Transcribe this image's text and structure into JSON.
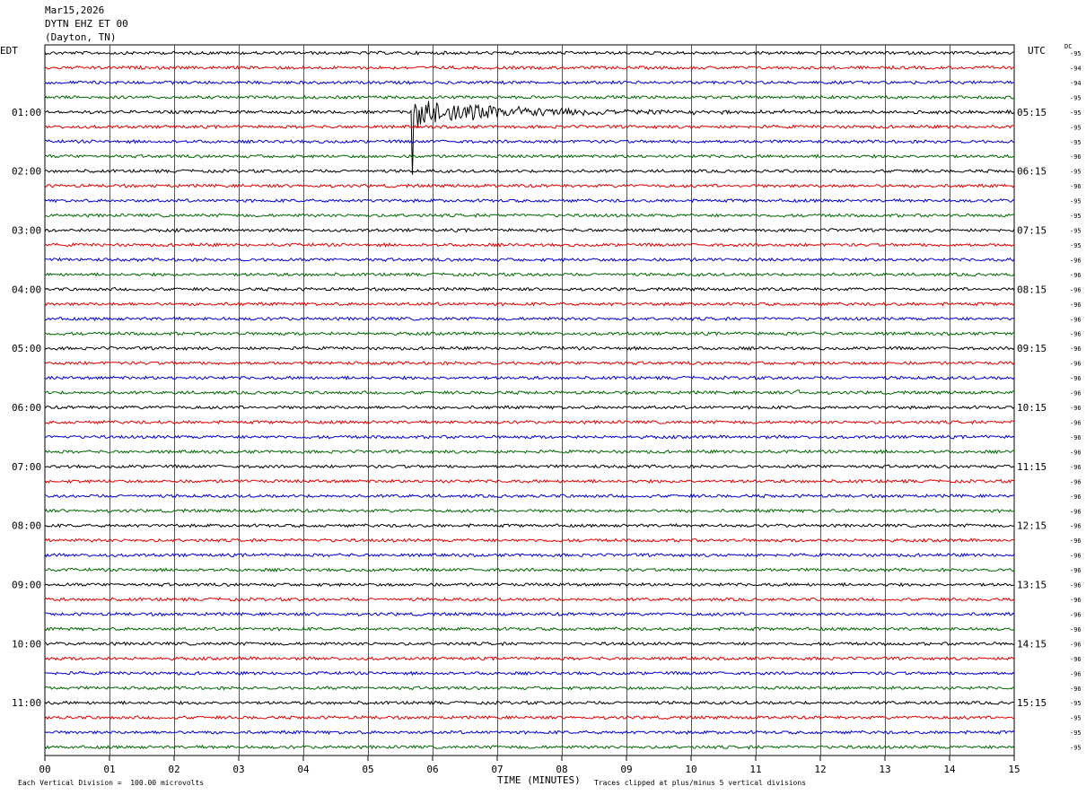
{
  "header": {
    "date": "Mar15,2026",
    "station": "DYTN EHZ ET 00",
    "location": "(Dayton, TN)"
  },
  "labels": {
    "left_tz": "EDT",
    "right_tz": "UTC",
    "dc_label": "DC",
    "x_title": "TIME (MINUTES)",
    "footer_left": "Each Vertical Division =  100.00 microvolts",
    "footer_right": "Traces clipped at plus/minus 5 vertical divisions"
  },
  "colors": {
    "trace_cycle": [
      "#000000",
      "#dd0000",
      "#0000cc",
      "#006600"
    ],
    "grid": "#000000",
    "background": "#ffffff"
  },
  "chart_data": {
    "type": "line",
    "title": "DYTN EHZ ET 00 (Dayton, TN) Mar15,2026",
    "xlabel": "TIME (MINUTES)",
    "x_ticks": [
      "00",
      "01",
      "02",
      "03",
      "04",
      "05",
      "06",
      "07",
      "08",
      "09",
      "10",
      "11",
      "12",
      "13",
      "14",
      "15"
    ],
    "xlim": [
      0,
      15
    ],
    "trace_minutes": 15,
    "row_count": 48,
    "left_hour_labels": [
      "01:00",
      "02:00",
      "03:00",
      "04:00",
      "05:00",
      "06:00",
      "07:00",
      "08:00",
      "09:00",
      "10:00",
      "11:00"
    ],
    "right_hour_labels": [
      "05:15",
      "06:15",
      "07:15",
      "08:15",
      "09:15",
      "10:15",
      "11:15",
      "12:15",
      "13:15",
      "14:15",
      "15:15"
    ],
    "hour_label_first_row": 4,
    "hour_label_every_rows": 4,
    "dc_offsets": [
      -95,
      -94,
      -94,
      -95,
      -95,
      -95,
      -95,
      -96,
      -95,
      -96,
      -95,
      -95,
      -95,
      -95,
      -96,
      -96,
      -96,
      -96,
      -96,
      -96,
      -96,
      -96,
      -96,
      -96,
      -96,
      -96,
      -96,
      -96,
      -96,
      -96,
      -96,
      -96,
      -96,
      -96,
      -96,
      -96,
      -96,
      -96,
      -96,
      -96,
      -96,
      -96,
      -96,
      -96,
      -95,
      -95,
      -95,
      -95
    ],
    "vertical_division_microvolts": 100,
    "clip_divisions": 5,
    "events": [
      {
        "row": 4,
        "start_minute": 5.68,
        "description": "earthquake signal",
        "peak_divisions": 5
      },
      {
        "row": 23,
        "start_minute": 11.6,
        "description": "spike",
        "peak_divisions": 1
      },
      {
        "row": 44,
        "start_minute": 2.25,
        "description": "spike",
        "peak_divisions": 1
      }
    ]
  }
}
